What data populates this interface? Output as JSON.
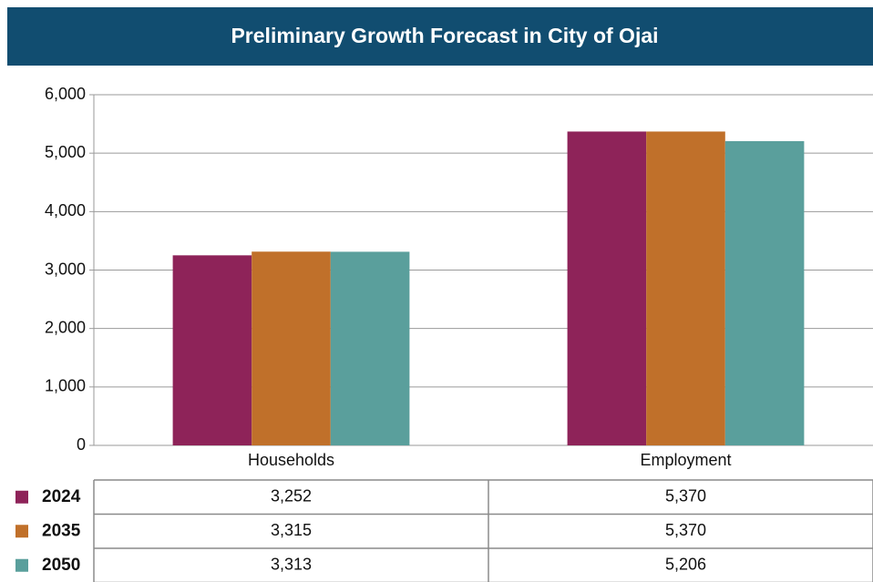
{
  "chart_data": {
    "type": "bar",
    "title": "Preliminary Growth Forecast in City of Ojai",
    "categories": [
      "Households",
      "Employment"
    ],
    "series": [
      {
        "name": "2024",
        "color": "#8e2359",
        "values": [
          3252,
          5370
        ],
        "value_labels": [
          "3,252",
          "5,370"
        ]
      },
      {
        "name": "2035",
        "color": "#c0702a",
        "values": [
          3315,
          5370
        ],
        "value_labels": [
          "3,315",
          "5,370"
        ]
      },
      {
        "name": "2050",
        "color": "#5a9f9c",
        "values": [
          3313,
          5206
        ],
        "value_labels": [
          "3,313",
          "5,206"
        ]
      }
    ],
    "ylim": [
      0,
      6000
    ],
    "yticks": [
      0,
      {
        "value": 1000,
        "label": "1,000"
      },
      {
        "value": 2000,
        "label": "2,000"
      },
      {
        "value": 3000,
        "label": "3,000"
      },
      {
        "value": 4000,
        "label": "4,000"
      },
      {
        "value": 5000,
        "label": "5,000"
      },
      {
        "value": 6000,
        "label": "6,000"
      }
    ],
    "grid": true
  }
}
